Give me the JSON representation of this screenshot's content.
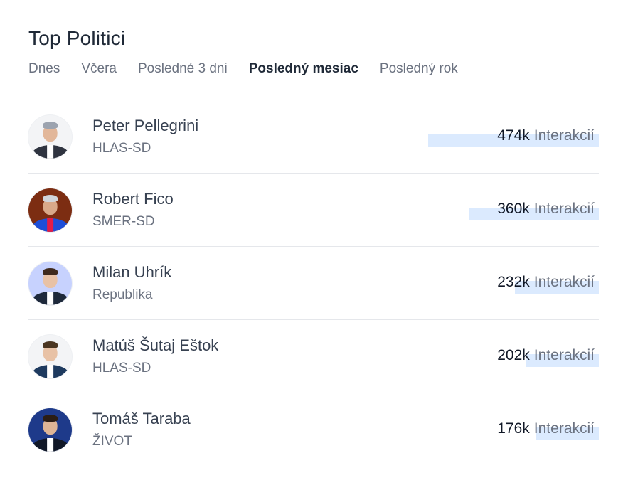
{
  "header": {
    "title": "Top Politici"
  },
  "tabs": [
    {
      "label": "Dnes",
      "active": false
    },
    {
      "label": "Včera",
      "active": false
    },
    {
      "label": "Posledné 3 dni",
      "active": false
    },
    {
      "label": "Posledný mesiac",
      "active": true
    },
    {
      "label": "Posledný rok",
      "active": false
    }
  ],
  "politicians": [
    {
      "name": "Peter Pellegrini",
      "party": "HLAS-SD",
      "count": "474k",
      "unit": "Interakcií",
      "bar_fraction": 1.0
    },
    {
      "name": "Robert Fico",
      "party": "SMER-SD",
      "count": "360k",
      "unit": "Interakcií",
      "bar_fraction": 0.76
    },
    {
      "name": "Milan Uhrík",
      "party": "Republika",
      "count": "232k",
      "unit": "Interakcií",
      "bar_fraction": 0.49
    },
    {
      "name": "Matúš Šutaj Eštok",
      "party": "HLAS-SD",
      "count": "202k",
      "unit": "Interakcií",
      "bar_fraction": 0.43
    },
    {
      "name": "Tomáš Taraba",
      "party": "ŽIVOT",
      "count": "176k",
      "unit": "Interakcií",
      "bar_fraction": 0.37
    }
  ],
  "colors": {
    "bar": "#dbeafe",
    "text_primary": "#1f2937",
    "text_muted": "#6b7280",
    "divider": "#e5e7eb"
  }
}
